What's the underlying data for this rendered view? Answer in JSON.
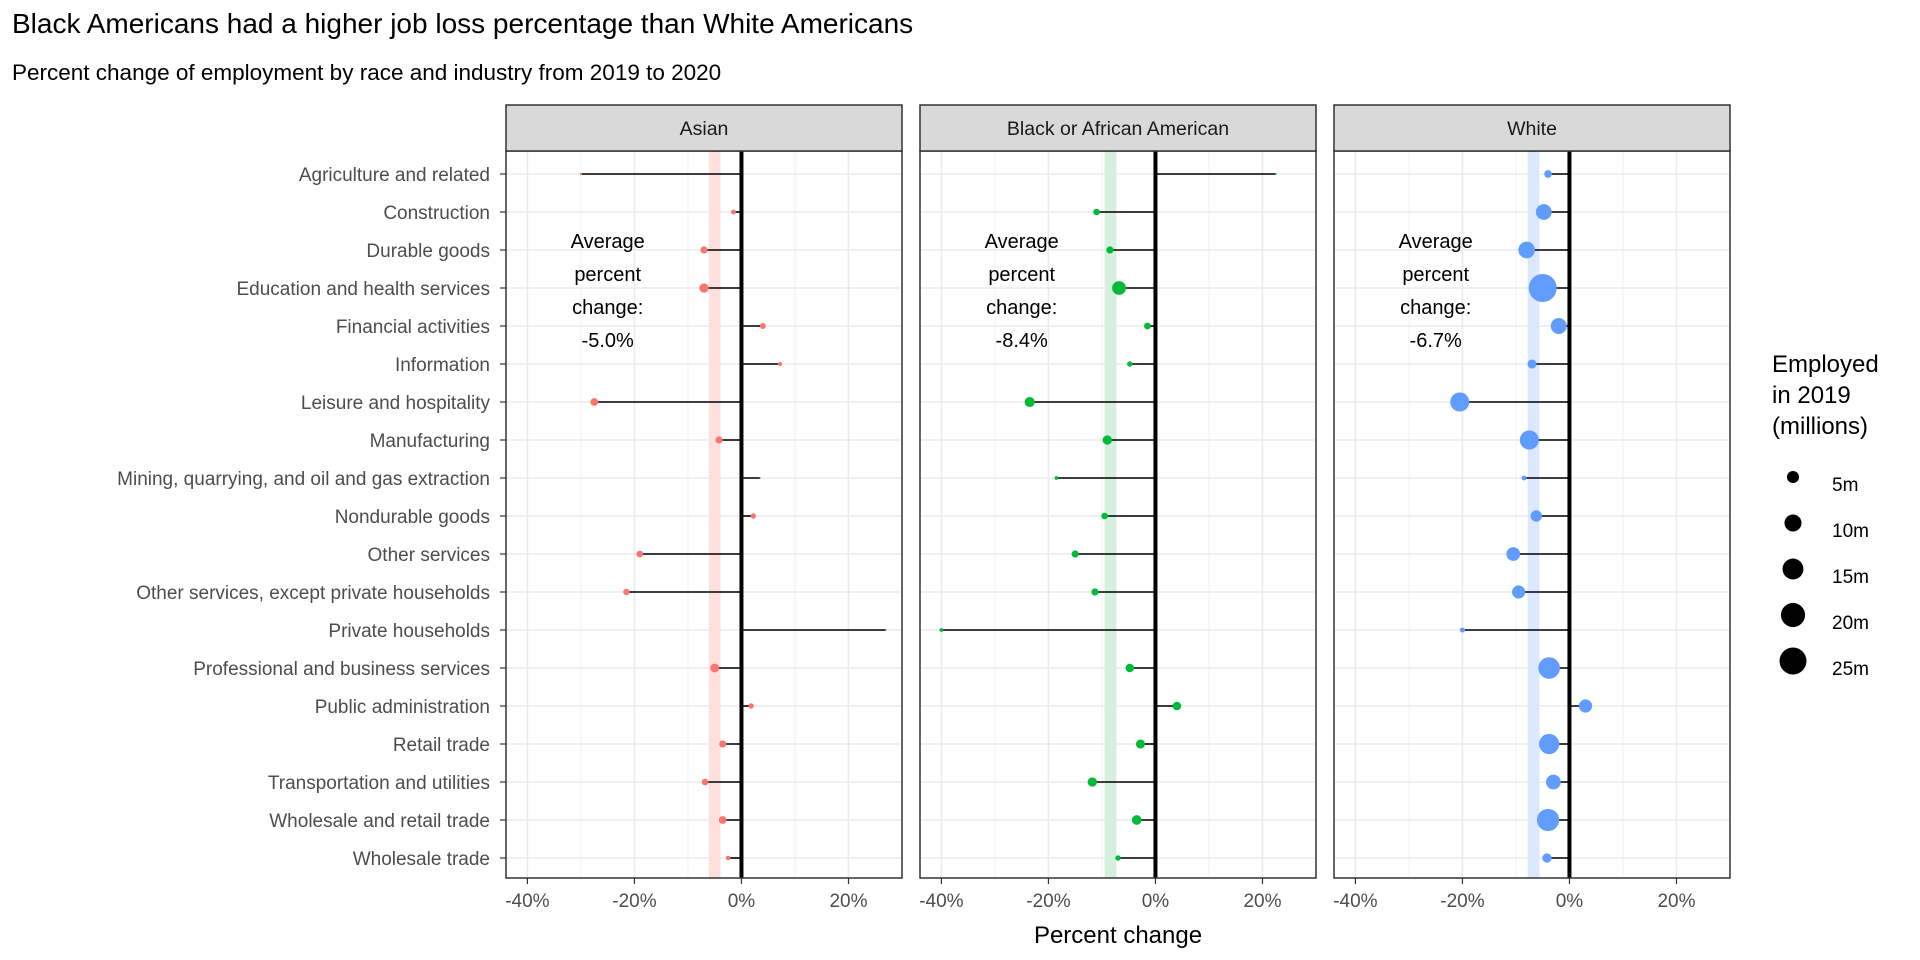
{
  "chart_data": {
    "type": "scatter",
    "title": "Black Americans had a higher job loss percentage than White Americans",
    "subtitle": "Percent change of employment by race and industry from 2019 to 2020",
    "xlabel": "Percent change",
    "ylabel": "",
    "xlim": [
      -0.44,
      0.3
    ],
    "x_ticks": [
      -0.4,
      -0.2,
      0.0,
      0.2
    ],
    "x_tick_labels": [
      "-40%",
      "-20%",
      "0%",
      "20%"
    ],
    "grid": true,
    "categories": [
      "Agriculture and related",
      "Construction",
      "Durable goods",
      "Education and health services",
      "Financial activities",
      "Information",
      "Leisure and hospitality",
      "Manufacturing",
      "Mining, quarrying, and oil and gas extraction",
      "Nondurable goods",
      "Other services",
      "Other services, except private households",
      "Private households",
      "Professional and business services",
      "Public administration",
      "Retail trade",
      "Transportation and utilities",
      "Wholesale and retail trade",
      "Wholesale trade"
    ],
    "facets": [
      {
        "name": "Asian",
        "color": "#F8766D",
        "band_color": "#FFE0DD",
        "average": -0.05,
        "annotation": [
          "Average",
          "percent",
          "change:",
          "-5.0%"
        ],
        "change": [
          -0.3,
          -0.015,
          -0.07,
          -0.07,
          0.04,
          0.072,
          -0.275,
          -0.042,
          0.035,
          0.022,
          -0.19,
          -0.215,
          0.27,
          -0.05,
          0.018,
          -0.035,
          -0.068,
          -0.035,
          -0.025
        ],
        "employed_millions": [
          0.2,
          0.8,
          1.8,
          3.0,
          1.2,
          0.6,
          2.1,
          1.8,
          0.05,
          1.0,
          1.6,
          1.4,
          0.1,
          2.7,
          1.0,
          1.8,
          1.5,
          2.1,
          0.7
        ]
      },
      {
        "name": "Black or African American",
        "color": "#00BA38",
        "band_color": "#D5F0DE",
        "average": -0.084,
        "annotation": [
          "Average",
          "percent",
          "change:",
          "-8.4%"
        ],
        "change": [
          0.225,
          -0.11,
          -0.085,
          -0.068,
          -0.015,
          -0.048,
          -0.235,
          -0.09,
          -0.185,
          -0.095,
          -0.15,
          -0.113,
          -0.4,
          -0.048,
          0.04,
          -0.028,
          -0.118,
          -0.035,
          -0.07
        ],
        "employed_millions": [
          0.1,
          1.5,
          1.8,
          6.5,
          1.6,
          1.0,
          3.5,
          3.0,
          0.5,
          1.5,
          1.8,
          1.8,
          0.5,
          2.5,
          2.5,
          2.8,
          3.0,
          3.2,
          1.0
        ]
      },
      {
        "name": "White",
        "color": "#619CFF",
        "band_color": "#DCE8FF",
        "average": -0.067,
        "annotation": [
          "Average",
          "percent",
          "change:",
          "-6.7%"
        ],
        "change": [
          -0.04,
          -0.048,
          -0.08,
          -0.05,
          -0.02,
          -0.07,
          -0.205,
          -0.075,
          -0.085,
          -0.062,
          -0.105,
          -0.095,
          -0.2,
          -0.038,
          0.03,
          -0.038,
          -0.03,
          -0.04,
          -0.042
        ],
        "employed_millions": [
          2.0,
          8.5,
          9.5,
          27.0,
          8.8,
          2.8,
          12.5,
          12.5,
          0.8,
          4.5,
          6.5,
          6.0,
          0.9,
          16.0,
          6.0,
          14.0,
          7.5,
          17.0,
          3.0
        ]
      }
    ],
    "legend": {
      "title": [
        "Employed",
        "in 2019",
        "(millions)"
      ],
      "placement": "right",
      "values": [
        5,
        10,
        15,
        20,
        25
      ],
      "labels": [
        "5m",
        "10m",
        "15m",
        "20m",
        "25m"
      ]
    }
  }
}
